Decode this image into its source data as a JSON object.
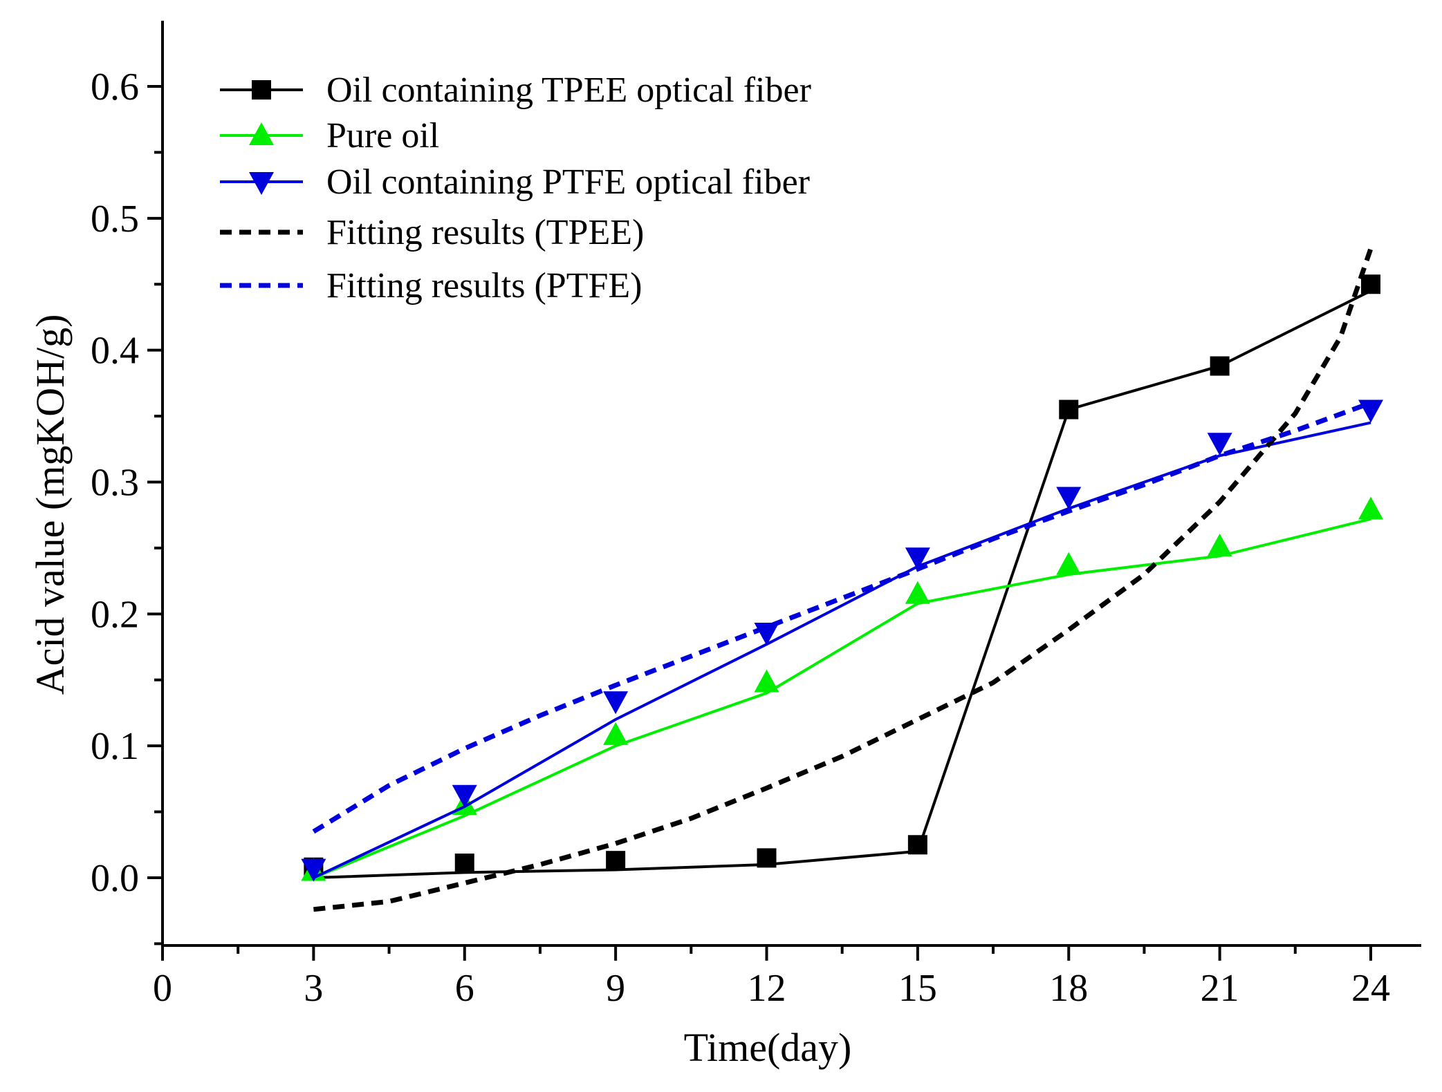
{
  "chart_data": {
    "type": "line",
    "title": "",
    "xlabel": "Time(day)",
    "ylabel": "Acid value (mgKOH/g)",
    "xlim": [
      0,
      25.5
    ],
    "ylim": [
      -0.05,
      0.65
    ],
    "x_ticks": [
      0,
      3,
      6,
      9,
      12,
      15,
      18,
      21,
      24
    ],
    "x_tick_labels": [
      "0",
      "3",
      "6",
      "9",
      "12",
      "15",
      "18",
      "21",
      "24"
    ],
    "y_ticks": [
      0.0,
      0.1,
      0.2,
      0.3,
      0.4,
      0.5,
      0.6
    ],
    "y_tick_labels": [
      "0.0",
      "0.1",
      "0.2",
      "0.3",
      "0.4",
      "0.5",
      "0.6"
    ],
    "grid": false,
    "legend_position": "top-left",
    "series": [
      {
        "name": "Oil containing TPEE optical fiber",
        "style": "line-markers",
        "marker": "square",
        "color": "#000000",
        "x": [
          3,
          6,
          9,
          12,
          15,
          18,
          21,
          24
        ],
        "values": [
          0.008,
          0.011,
          0.013,
          0.015,
          0.025,
          0.355,
          0.388,
          0.45
        ],
        "line_values": [
          0.0,
          0.004,
          0.006,
          0.01,
          0.02,
          0.355,
          0.388,
          0.445
        ]
      },
      {
        "name": "Pure oil",
        "style": "line-markers",
        "marker": "triangle-up",
        "color": "#00ee00",
        "x": [
          3,
          6,
          9,
          12,
          15,
          18,
          21,
          24
        ],
        "values": [
          0.005,
          0.055,
          0.108,
          0.148,
          0.215,
          0.237,
          0.251,
          0.279
        ],
        "line_values": [
          0.0,
          0.047,
          0.1,
          0.14,
          0.208,
          0.23,
          0.244,
          0.272
        ]
      },
      {
        "name": "Oil containing PTFE optical fiber",
        "style": "line-markers",
        "marker": "triangle-down",
        "color": "#0000dd",
        "x": [
          3,
          6,
          9,
          12,
          15,
          18,
          21,
          24
        ],
        "values": [
          0.007,
          0.063,
          0.134,
          0.186,
          0.243,
          0.289,
          0.33,
          0.355
        ],
        "line_values": [
          0.0,
          0.054,
          0.12,
          0.177,
          0.236,
          0.28,
          0.32,
          0.345
        ]
      },
      {
        "name": "Fitting results (TPEE)",
        "style": "dashed",
        "color": "#000000",
        "x": [
          3,
          4.5,
          6,
          7.5,
          9,
          10.5,
          12,
          13.5,
          15,
          16.5,
          18,
          19.5,
          21,
          22.5,
          23.4,
          24
        ],
        "values": [
          -0.024,
          -0.018,
          -0.004,
          0.01,
          0.026,
          0.045,
          0.068,
          0.092,
          0.12,
          0.148,
          0.188,
          0.23,
          0.285,
          0.352,
          0.41,
          0.477
        ]
      },
      {
        "name": "Fitting results (PTFE)",
        "style": "dashed",
        "color": "#0000dd",
        "x": [
          3,
          4.5,
          6,
          7.5,
          9,
          10.5,
          12,
          13.5,
          15,
          16.5,
          18,
          19.5,
          21,
          22.5,
          24
        ],
        "values": [
          0.035,
          0.07,
          0.098,
          0.123,
          0.146,
          0.168,
          0.19,
          0.212,
          0.234,
          0.257,
          0.278,
          0.298,
          0.32,
          0.339,
          0.36
        ]
      }
    ]
  }
}
